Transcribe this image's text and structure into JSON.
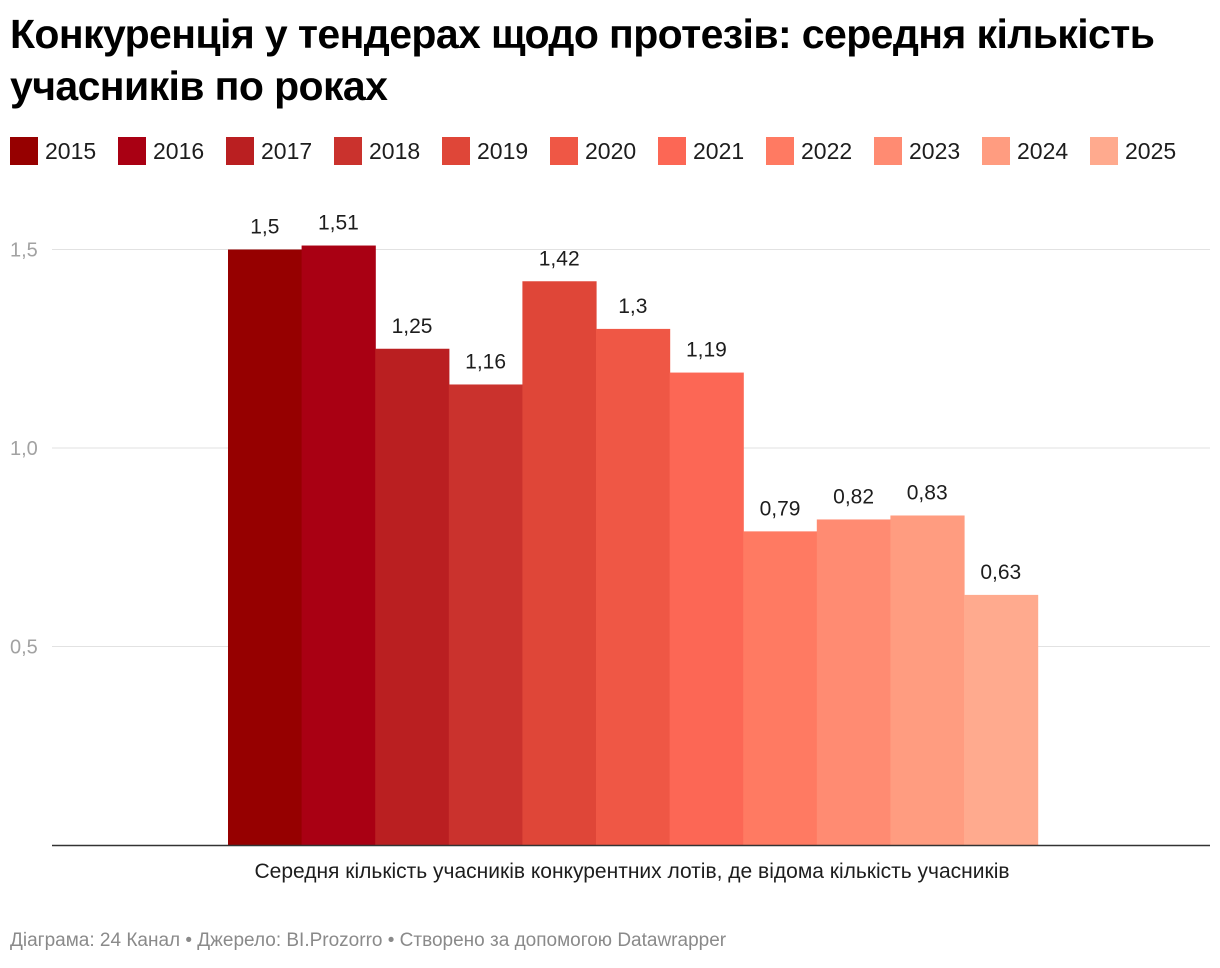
{
  "chart_data": {
    "type": "bar",
    "title": "Конкуренція у тендерах щодо протезів: середня кількість учасників по роках",
    "categories": [
      "Середня кількість учасників конкурентних лотів, де відома кількість учасників"
    ],
    "xlabel": "Середня кількість учасників конкурентних лотів, де відома кількість учасників",
    "ylabel": "",
    "ylim": [
      0,
      1.5
    ],
    "yticks": [
      0.5,
      1.0,
      1.5
    ],
    "ytick_labels": [
      "0,5",
      "1,0",
      "1,5"
    ],
    "legend_position": "top-left",
    "grid": true,
    "series": [
      {
        "name": "2015",
        "values": [
          1.5
        ],
        "label": "1,5",
        "color": "#960000"
      },
      {
        "name": "2016",
        "values": [
          1.51
        ],
        "label": "1,51",
        "color": "#a90013"
      },
      {
        "name": "2017",
        "values": [
          1.25
        ],
        "label": "1,25",
        "color": "#ba1f21"
      },
      {
        "name": "2018",
        "values": [
          1.16
        ],
        "label": "1,16",
        "color": "#ca322d"
      },
      {
        "name": "2019",
        "values": [
          1.42
        ],
        "label": "1,42",
        "color": "#df4638"
      },
      {
        "name": "2020",
        "values": [
          1.3
        ],
        "label": "1,3",
        "color": "#ef5745"
      },
      {
        "name": "2021",
        "values": [
          1.19
        ],
        "label": "1,19",
        "color": "#fc6755"
      },
      {
        "name": "2022",
        "values": [
          0.79
        ],
        "label": "0,79",
        "color": "#ff7a62"
      },
      {
        "name": "2023",
        "values": [
          0.82
        ],
        "label": "0,82",
        "color": "#ff8b72"
      },
      {
        "name": "2024",
        "values": [
          0.83
        ],
        "label": "0,83",
        "color": "#ff9c80"
      },
      {
        "name": "2025",
        "values": [
          0.63
        ],
        "label": "0,63",
        "color": "#ffaa8e"
      }
    ]
  },
  "footer": {
    "text": "Діаграма: 24 Канал • Джерело: BI.Prozorro • Створено за допомогою Datawrapper"
  }
}
